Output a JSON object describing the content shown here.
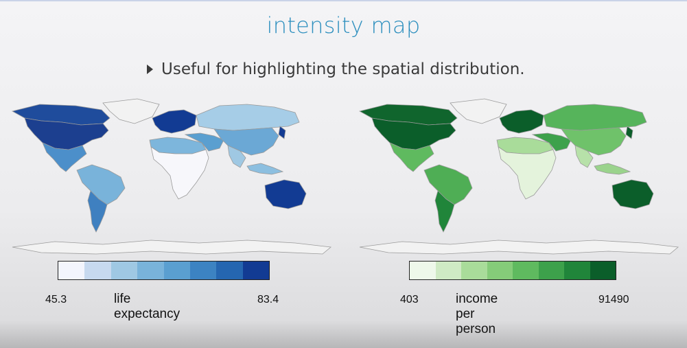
{
  "title": "intensity map",
  "bullet": "Useful for highlighting the spatial distribution.",
  "maps": [
    {
      "variable": "life expectancy",
      "min_label": "45.3",
      "max_label": "83.4",
      "colors": {
        "ramp": [
          "#f3f5fd",
          "#c7d9ef",
          "#9fc8e3",
          "#79b3da",
          "#5a9fd0",
          "#3c83c2",
          "#2566b0",
          "#123b93"
        ],
        "north_america": "#1c3f8f",
        "canada_arctic": "#1f4c9c",
        "greenland": "#f2f2f2",
        "mexico_central": "#4c8fca",
        "south_america_north": "#79b3da",
        "south_america_south": "#3f80c0",
        "europe": "#123b93",
        "russia": "#a6cde7",
        "middle_east": "#5a9fd0",
        "asia": "#6ba8d5",
        "india": "#9fc8e3",
        "africa": "#f7f7fb",
        "north_africa": "#7db6dc",
        "australia": "#123b93",
        "indonesia": "#8cbfe0",
        "antarctica": "#f2f2f2",
        "japan": "#123b93"
      }
    },
    {
      "variable": "income per person",
      "min_label": "403",
      "max_label": "91490",
      "colors": {
        "ramp": [
          "#eef8ea",
          "#cfeac4",
          "#a9dc9a",
          "#85cc79",
          "#5fba5f",
          "#3da14b",
          "#20853a",
          "#0b5e2a"
        ],
        "north_america": "#0b5e2a",
        "canada_arctic": "#10652d",
        "greenland": "#f2f2f2",
        "mexico_central": "#5fba5f",
        "south_america_north": "#4fae55",
        "south_america_south": "#20853a",
        "europe": "#0b5e2a",
        "russia": "#56b45b",
        "middle_east": "#3da14b",
        "asia": "#6fc26a",
        "india": "#b7e1a9",
        "africa": "#e4f3dc",
        "north_africa": "#a9dc9a",
        "australia": "#0b5e2a",
        "indonesia": "#9ad38c",
        "antarctica": "#f2f2f2",
        "japan": "#0b5e2a"
      }
    }
  ]
}
